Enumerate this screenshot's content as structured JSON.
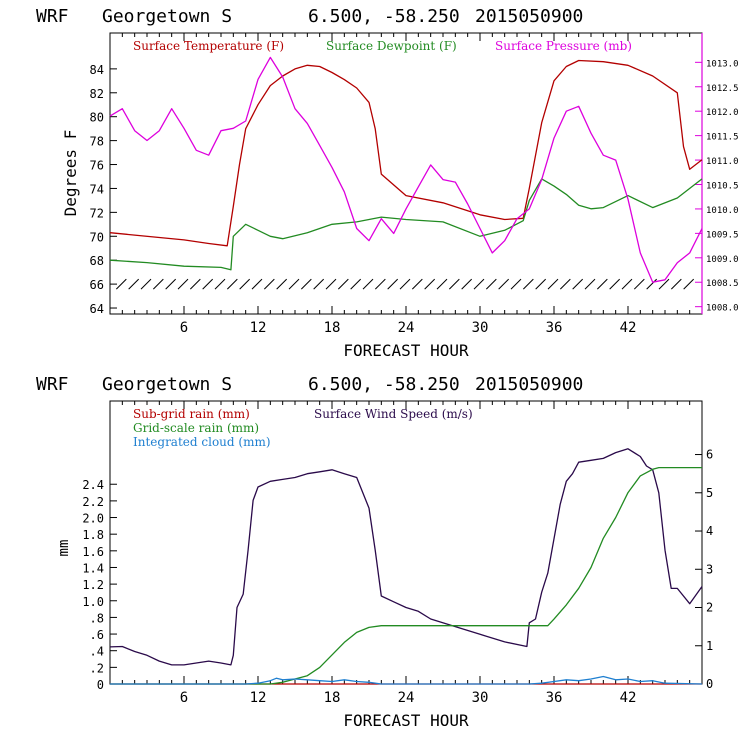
{
  "charts": [
    {
      "header": {
        "model": "WRF",
        "station": "Georgetown S",
        "coords": "6.500, -58.250",
        "init": "2015050900"
      },
      "xlabel": "FORECAST HOUR",
      "ylabel_left": "Degrees F",
      "legend": [
        {
          "label": "Surface Temperature (F)",
          "color": "#b30000"
        },
        {
          "label": "Surface Dewpoint (F)",
          "color": "#228b22"
        },
        {
          "label": "Surface Pressure (mb)",
          "color": "#dd00dd"
        }
      ]
    },
    {
      "header": {
        "model": "WRF",
        "station": "Georgetown S",
        "coords": "6.500, -58.250",
        "init": "2015050900"
      },
      "xlabel": "FORECAST HOUR",
      "ylabel_left": "mm",
      "legend": [
        {
          "label": "Sub-grid rain (mm)",
          "color": "#b30000"
        },
        {
          "label": "Surface Wind Speed (m/s)",
          "color": "#2a0a4a"
        },
        {
          "label": "Grid-scale rain (mm)",
          "color": "#228b22"
        },
        {
          "label": "Integrated cloud (mm)",
          "color": "#1e7fd0"
        }
      ]
    }
  ],
  "chart_data": [
    {
      "type": "line",
      "x_range": [
        0,
        48
      ],
      "x_ticks": [
        "6",
        "12",
        "18",
        "24",
        "30",
        "36",
        "42"
      ],
      "x_tick_values": [
        6,
        12,
        18,
        24,
        30,
        36,
        42
      ],
      "y_left_range": [
        63.5,
        87
      ],
      "y_left_ticks": [
        "64",
        "66",
        "68",
        "70",
        "72",
        "74",
        "76",
        "78",
        "80",
        "82",
        "84"
      ],
      "y_left_tick_values": [
        64,
        66,
        68,
        70,
        72,
        74,
        76,
        78,
        80,
        82,
        84
      ],
      "y_right_range": [
        1007.85,
        1013.6
      ],
      "y_right_ticks": [
        "1008.0",
        "1008.5",
        "1009.0",
        "1009.5",
        "1010.0",
        "1010.5",
        "1011.0",
        "1011.5",
        "1012.0",
        "1012.5",
        "1013.0"
      ],
      "y_right_tick_values": [
        1008.0,
        1008.5,
        1009.0,
        1009.5,
        1010.0,
        1010.5,
        1011.0,
        1011.5,
        1012.0,
        1012.5,
        1013.0
      ],
      "wind_barb_level": 66,
      "series": [
        {
          "name": "Surface Temperature (F)",
          "axis": "left",
          "color": "#b30000",
          "x": [
            0,
            2,
            4,
            6,
            8,
            9.5,
            10,
            10.5,
            11,
            12,
            13,
            14,
            15,
            16,
            17,
            18,
            19,
            20,
            21,
            21.5,
            22,
            24,
            27,
            30,
            32,
            33.5,
            34,
            35,
            36,
            37,
            38,
            40,
            42,
            44,
            46,
            46.5,
            47,
            48
          ],
          "y": [
            70.3,
            70.1,
            69.9,
            69.7,
            69.4,
            69.2,
            72.5,
            76,
            79,
            81,
            82.6,
            83.4,
            84,
            84.3,
            84.2,
            83.7,
            83.1,
            82.4,
            81.2,
            79,
            75.2,
            73.4,
            72.8,
            71.8,
            71.4,
            71.5,
            74,
            79.5,
            83,
            84.2,
            84.7,
            84.6,
            84.3,
            83.4,
            82,
            77.5,
            75.6,
            76.4
          ]
        },
        {
          "name": "Surface Dewpoint (F)",
          "axis": "left",
          "color": "#228b22",
          "x": [
            0,
            3,
            6,
            9,
            9.8,
            10,
            11,
            12,
            13,
            14,
            16,
            18,
            20,
            22,
            24,
            27,
            30,
            32,
            33.5,
            34,
            35,
            36,
            37,
            38,
            39,
            40,
            42,
            44,
            46,
            48
          ],
          "y": [
            68,
            67.8,
            67.5,
            67.4,
            67.2,
            70,
            71,
            70.5,
            70,
            69.8,
            70.3,
            71,
            71.2,
            71.6,
            71.4,
            71.2,
            70,
            70.5,
            71.3,
            73,
            74.8,
            74.2,
            73.5,
            72.6,
            72.3,
            72.4,
            73.4,
            72.4,
            73.2,
            74.8
          ]
        },
        {
          "name": "Surface Pressure (mb)",
          "axis": "right",
          "color": "#dd00dd",
          "x": [
            0,
            1,
            2,
            3,
            4,
            5,
            6,
            7,
            8,
            9,
            10,
            11,
            12,
            13,
            14,
            15,
            16,
            17,
            18,
            19,
            20,
            21,
            22,
            23,
            24,
            25,
            26,
            27,
            28,
            29,
            30,
            31,
            32,
            33,
            34,
            35,
            36,
            37,
            38,
            39,
            40,
            41,
            42,
            43,
            44,
            45,
            46,
            47,
            48
          ],
          "y": [
            1011.9,
            1012.05,
            1011.6,
            1011.4,
            1011.6,
            1012.05,
            1011.65,
            1011.2,
            1011.1,
            1011.6,
            1011.65,
            1011.8,
            1012.65,
            1013.1,
            1012.7,
            1012.05,
            1011.75,
            1011.3,
            1010.85,
            1010.35,
            1009.6,
            1009.35,
            1009.8,
            1009.5,
            1010.0,
            1010.45,
            1010.9,
            1010.6,
            1010.55,
            1010.1,
            1009.6,
            1009.1,
            1009.35,
            1009.8,
            1010.0,
            1010.6,
            1011.45,
            1012.0,
            1012.1,
            1011.55,
            1011.1,
            1011.0,
            1010.2,
            1009.1,
            1008.5,
            1008.55,
            1008.9,
            1009.1,
            1009.6
          ]
        }
      ]
    },
    {
      "type": "line",
      "x_range": [
        0,
        48
      ],
      "x_ticks": [
        "6",
        "12",
        "18",
        "24",
        "30",
        "36",
        "42"
      ],
      "x_tick_values": [
        6,
        12,
        18,
        24,
        30,
        36,
        42
      ],
      "y_left_range": [
        0,
        3.4
      ],
      "y_left_ticks": [
        "0",
        ".2",
        ".4",
        ".6",
        ".8",
        "1.0",
        "1.2",
        "1.4",
        "1.6",
        "1.8",
        "2.0",
        "2.2",
        "2.4"
      ],
      "y_left_tick_values": [
        0,
        0.2,
        0.4,
        0.6,
        0.8,
        1.0,
        1.2,
        1.4,
        1.6,
        1.8,
        2.0,
        2.2,
        2.4
      ],
      "y_right_range": [
        0,
        7.4
      ],
      "y_right_ticks": [
        "0",
        "1",
        "2",
        "3",
        "4",
        "5",
        "6"
      ],
      "y_right_tick_values": [
        0,
        1,
        2,
        3,
        4,
        5,
        6
      ],
      "series": [
        {
          "name": "Sub-grid rain (mm)",
          "axis": "left",
          "color": "#b30000",
          "x": [
            0,
            48
          ],
          "y": [
            0,
            0
          ]
        },
        {
          "name": "Surface Wind Speed (m/s)",
          "axis": "right",
          "color": "#2a0a4a",
          "x": [
            0,
            1,
            2,
            3,
            4,
            5,
            6,
            7,
            8,
            9,
            9.8,
            10,
            10.3,
            10.8,
            11.2,
            11.6,
            12,
            13,
            14,
            15,
            16,
            17,
            18,
            19,
            20,
            21,
            21.5,
            22,
            23,
            24,
            25,
            26,
            28,
            30,
            32,
            33.8,
            34,
            34.5,
            35,
            35.5,
            36,
            36.5,
            37,
            37.5,
            38,
            39,
            40,
            41,
            42,
            43,
            43.5,
            44,
            44.5,
            45,
            45.5,
            46,
            47,
            48
          ],
          "y": [
            0.97,
            0.98,
            0.85,
            0.75,
            0.6,
            0.5,
            0.5,
            0.55,
            0.6,
            0.55,
            0.5,
            0.75,
            2.0,
            2.35,
            3.5,
            4.8,
            5.15,
            5.3,
            5.35,
            5.4,
            5.5,
            5.55,
            5.6,
            5.5,
            5.4,
            4.6,
            3.5,
            2.3,
            2.15,
            2.0,
            1.9,
            1.7,
            1.5,
            1.3,
            1.1,
            0.98,
            1.6,
            1.7,
            2.4,
            2.9,
            3.8,
            4.7,
            5.3,
            5.5,
            5.8,
            5.85,
            5.9,
            6.05,
            6.15,
            5.95,
            5.7,
            5.6,
            5.0,
            3.5,
            2.5,
            2.5,
            2.1,
            2.55
          ]
        },
        {
          "name": "Grid-scale rain (mm)",
          "axis": "left",
          "color": "#228b22",
          "x": [
            0,
            13,
            14,
            15,
            16,
            17,
            18,
            19,
            20,
            21,
            22,
            24,
            34,
            35.5,
            36,
            37,
            38,
            39,
            40,
            41,
            42,
            43,
            44,
            44.5,
            48
          ],
          "y": [
            0,
            0,
            0.02,
            0.06,
            0.1,
            0.2,
            0.35,
            0.5,
            0.62,
            0.68,
            0.7,
            0.7,
            0.7,
            0.7,
            0.78,
            0.95,
            1.15,
            1.4,
            1.75,
            2.0,
            2.3,
            2.5,
            2.58,
            2.6,
            2.6
          ]
        },
        {
          "name": "Integrated cloud (mm)",
          "axis": "left",
          "color": "#1e7fd0",
          "x": [
            0,
            11,
            12,
            13,
            13.5,
            14,
            15,
            16,
            17,
            18,
            19,
            20,
            21,
            22,
            34,
            35,
            36,
            37,
            38,
            39,
            40,
            41,
            42,
            43,
            44,
            45,
            48
          ],
          "y": [
            0,
            0,
            0.01,
            0.04,
            0.07,
            0.05,
            0.06,
            0.05,
            0.04,
            0.03,
            0.05,
            0.03,
            0.02,
            0,
            0,
            0.01,
            0.03,
            0.05,
            0.04,
            0.06,
            0.09,
            0.05,
            0.06,
            0.03,
            0.04,
            0.01,
            0
          ]
        }
      ]
    }
  ]
}
